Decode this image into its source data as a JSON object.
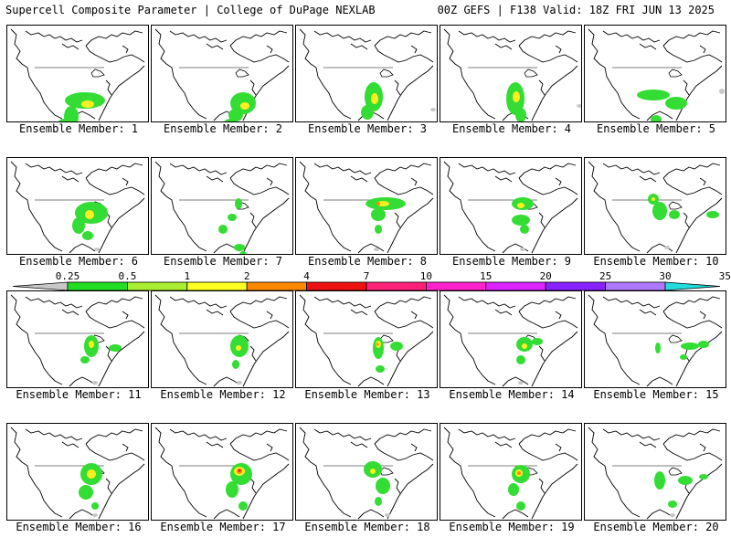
{
  "header": {
    "title": "Supercell Composite Parameter | College of DuPage NEXLAB",
    "run_info": "00Z GEFS | F138 Valid: 18Z FRI JUN 13 2025"
  },
  "colors": {
    "coastline": "#000000",
    "palette": [
      "#c8c8c8",
      "#22dd22",
      "#aaee33",
      "#ffff22",
      "#ff8800",
      "#ee1111",
      "#ff2277",
      "#ff22cc",
      "#dd22ff",
      "#8822ff",
      "#b077ff",
      "#22dddd"
    ]
  },
  "legend": {
    "labels": [
      "0.25",
      "0.5",
      "1",
      "2",
      "4",
      "7",
      "10",
      "15",
      "20",
      "25",
      "30",
      "35"
    ]
  },
  "members": [
    {
      "label": "Ensemble Member: 1",
      "blobs": [
        [
          "g",
          85,
          82,
          22,
          9
        ],
        [
          "y",
          88,
          86,
          7,
          4
        ],
        [
          "g",
          70,
          100,
          8,
          12
        ],
        [
          "g",
          62,
          108,
          7,
          6
        ],
        [
          "r",
          95,
          118,
          2,
          2
        ]
      ]
    },
    {
      "label": "Ensemble Member: 2",
      "blobs": [
        [
          "g",
          100,
          85,
          14,
          12
        ],
        [
          "y",
          102,
          88,
          5,
          4
        ],
        [
          "g",
          92,
          98,
          8,
          7
        ],
        [
          "g",
          86,
          107,
          7,
          5
        ],
        [
          "gr",
          75,
          115,
          3,
          3
        ]
      ]
    },
    {
      "label": "Ensemble Member: 3",
      "blobs": [
        [
          "g",
          85,
          78,
          10,
          16
        ],
        [
          "y",
          86,
          80,
          4,
          6
        ],
        [
          "g",
          78,
          95,
          7,
          8
        ],
        [
          "g",
          88,
          112,
          8,
          6
        ],
        [
          "gr",
          150,
          92,
          3,
          2
        ]
      ]
    },
    {
      "label": "Ensemble Member: 4",
      "blobs": [
        [
          "g",
          82,
          80,
          10,
          18
        ],
        [
          "y",
          83,
          78,
          4,
          6
        ],
        [
          "g",
          88,
          98,
          6,
          8
        ],
        [
          "g",
          72,
          110,
          7,
          5
        ],
        [
          "gr",
          152,
          88,
          3,
          2
        ]
      ]
    },
    {
      "label": "Ensemble Member: 5",
      "blobs": [
        [
          "g",
          75,
          76,
          18,
          6
        ],
        [
          "g",
          100,
          85,
          12,
          7
        ],
        [
          "gr",
          150,
          72,
          3,
          3
        ],
        [
          "g",
          78,
          103,
          6,
          5
        ],
        [
          "g",
          88,
          115,
          7,
          5
        ]
      ]
    },
    {
      "label": "Ensemble Member: 6",
      "blobs": [
        [
          "g",
          92,
          60,
          18,
          12
        ],
        [
          "y",
          90,
          62,
          5,
          5
        ],
        [
          "g",
          78,
          74,
          7,
          9
        ],
        [
          "g",
          88,
          85,
          6,
          5
        ],
        [
          "gr",
          98,
          100,
          3,
          2
        ]
      ]
    },
    {
      "label": "Ensemble Member: 7",
      "blobs": [
        [
          "g",
          95,
          50,
          4,
          6
        ],
        [
          "g",
          88,
          65,
          5,
          4
        ],
        [
          "g",
          78,
          78,
          5,
          5
        ],
        [
          "g",
          96,
          98,
          6,
          4
        ],
        [
          "g",
          100,
          106,
          4,
          4
        ]
      ]
    },
    {
      "label": "Ensemble Member: 8",
      "blobs": [
        [
          "g",
          98,
          50,
          22,
          7
        ],
        [
          "y",
          95,
          50,
          7,
          3
        ],
        [
          "o",
          90,
          50,
          2,
          2
        ],
        [
          "g",
          90,
          62,
          8,
          7
        ],
        [
          "g",
          90,
          78,
          4,
          5
        ],
        [
          "gr",
          88,
          100,
          3,
          2
        ]
      ]
    },
    {
      "label": "Ensemble Member: 9",
      "blobs": [
        [
          "g",
          90,
          50,
          12,
          7
        ],
        [
          "y",
          88,
          52,
          4,
          3
        ],
        [
          "g",
          88,
          68,
          10,
          6
        ],
        [
          "g",
          92,
          78,
          5,
          5
        ],
        [
          "gr",
          90,
          100,
          3,
          2
        ]
      ]
    },
    {
      "label": "Ensemble Member: 10",
      "blobs": [
        [
          "g",
          75,
          45,
          6,
          6
        ],
        [
          "y",
          75,
          45,
          2,
          2
        ],
        [
          "g",
          82,
          58,
          8,
          10
        ],
        [
          "g",
          98,
          62,
          6,
          5
        ],
        [
          "g",
          140,
          62,
          7,
          4
        ],
        [
          "gr",
          90,
          98,
          3,
          2
        ]
      ]
    },
    {
      "label": "Ensemble Member: 11",
      "blobs": [
        [
          "g",
          92,
          60,
          8,
          12
        ],
        [
          "y",
          92,
          58,
          3,
          4
        ],
        [
          "g",
          118,
          62,
          7,
          4
        ],
        [
          "g",
          85,
          75,
          5,
          4
        ],
        [
          "gr",
          96,
          100,
          3,
          2
        ]
      ]
    },
    {
      "label": "Ensemble Member: 12",
      "blobs": [
        [
          "g",
          96,
          60,
          10,
          12
        ],
        [
          "y",
          95,
          62,
          3,
          3
        ],
        [
          "g",
          92,
          80,
          4,
          5
        ],
        [
          "gr",
          96,
          100,
          3,
          2
        ]
      ]
    },
    {
      "label": "Ensemble Member: 13",
      "blobs": [
        [
          "g",
          90,
          62,
          6,
          12
        ],
        [
          "y",
          90,
          58,
          3,
          4
        ],
        [
          "o",
          89,
          58,
          1.5,
          1.5
        ],
        [
          "g",
          110,
          60,
          7,
          5
        ],
        [
          "g",
          92,
          85,
          5,
          4
        ]
      ]
    },
    {
      "label": "Ensemble Member: 14",
      "blobs": [
        [
          "g",
          92,
          58,
          9,
          8
        ],
        [
          "y",
          92,
          60,
          3,
          3
        ],
        [
          "g",
          106,
          55,
          6,
          4
        ],
        [
          "g",
          88,
          75,
          5,
          5
        ],
        [
          "gr",
          88,
          100,
          3,
          2
        ]
      ]
    },
    {
      "label": "Ensemble Member: 15",
      "blobs": [
        [
          "g",
          80,
          62,
          3,
          6
        ],
        [
          "g",
          115,
          60,
          10,
          4
        ],
        [
          "g",
          130,
          58,
          6,
          4
        ],
        [
          "g",
          108,
          72,
          4,
          3
        ]
      ]
    },
    {
      "label": "Ensemble Member: 16",
      "blobs": [
        [
          "g",
          92,
          55,
          12,
          12
        ],
        [
          "y",
          92,
          55,
          5,
          5
        ],
        [
          "g",
          86,
          75,
          8,
          8
        ],
        [
          "g",
          96,
          90,
          4,
          4
        ],
        [
          "gr",
          96,
          100,
          3,
          2
        ]
      ]
    },
    {
      "label": "Ensemble Member: 17",
      "blobs": [
        [
          "g",
          98,
          55,
          12,
          12
        ],
        [
          "y",
          96,
          52,
          6,
          5
        ],
        [
          "o",
          96,
          52,
          3,
          3
        ],
        [
          "r",
          96,
          51,
          1.5,
          1.5
        ],
        [
          "g",
          88,
          72,
          7,
          9
        ],
        [
          "g",
          100,
          90,
          5,
          5
        ]
      ]
    },
    {
      "label": "Ensemble Member: 18",
      "blobs": [
        [
          "g",
          84,
          50,
          10,
          9
        ],
        [
          "y",
          84,
          52,
          3,
          3
        ],
        [
          "g",
          95,
          68,
          8,
          9
        ],
        [
          "g",
          90,
          85,
          4,
          5
        ],
        [
          "gr",
          100,
          100,
          3,
          2
        ]
      ]
    },
    {
      "label": "Ensemble Member: 19",
      "blobs": [
        [
          "g",
          88,
          55,
          10,
          10
        ],
        [
          "y",
          86,
          54,
          4,
          4
        ],
        [
          "o",
          86,
          54,
          2,
          2
        ],
        [
          "g",
          80,
          72,
          6,
          7
        ],
        [
          "g",
          88,
          90,
          5,
          5
        ]
      ]
    },
    {
      "label": "Ensemble Member: 20",
      "blobs": [
        [
          "g",
          82,
          62,
          6,
          10
        ],
        [
          "g",
          110,
          62,
          8,
          5
        ],
        [
          "g",
          130,
          58,
          5,
          3
        ],
        [
          "g",
          96,
          88,
          5,
          4
        ],
        [
          "gr",
          96,
          100,
          3,
          2
        ]
      ]
    }
  ]
}
